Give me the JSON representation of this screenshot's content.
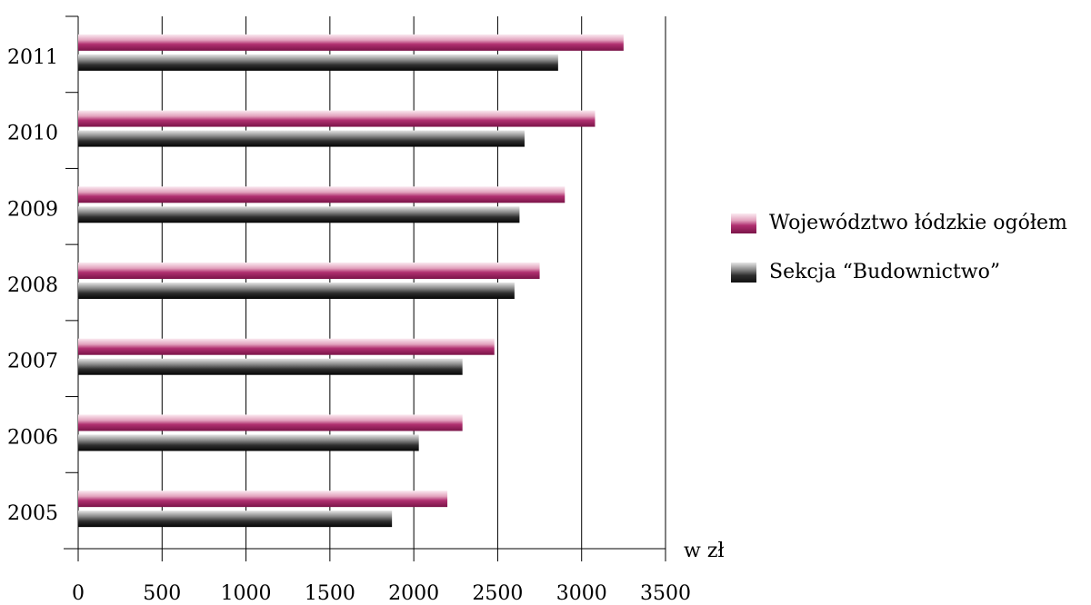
{
  "chart_data": {
    "type": "bar",
    "orientation": "horizontal",
    "categories": [
      "2011",
      "2010",
      "2009",
      "2008",
      "2007",
      "2006",
      "2005"
    ],
    "series": [
      {
        "name": "Województwo łódzkie ogółem",
        "values": [
          3250,
          3080,
          2900,
          2750,
          2480,
          2290,
          2200
        ]
      },
      {
        "name": "Sekcja “Budownictwo”",
        "values": [
          2860,
          2660,
          2630,
          2600,
          2290,
          2030,
          1870
        ]
      }
    ],
    "x_ticks": [
      "0",
      "500",
      "1000",
      "1500",
      "2000",
      "2500",
      "3000",
      "3500"
    ],
    "xlim": [
      0,
      3500
    ],
    "xlabel": "w zł",
    "grid": true,
    "legend_position": "right",
    "colors": {
      "series_1": "#b03070",
      "series_1_light": "#fbeaf1",
      "series_2": "#111111",
      "series_2_light": "#e6e6e6",
      "axis": "#000000"
    }
  }
}
